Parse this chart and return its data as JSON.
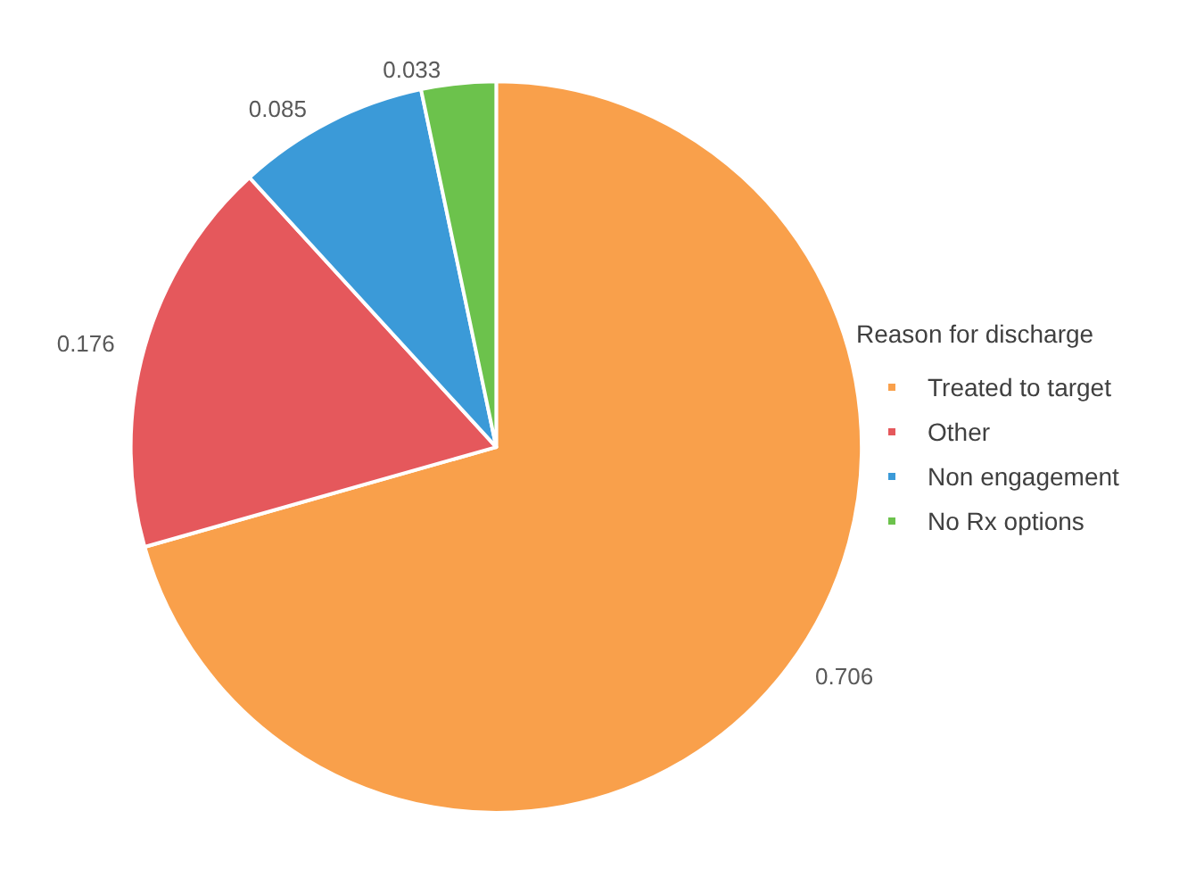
{
  "chart_data": {
    "type": "pie",
    "legend_title": "Reason for discharge",
    "categories": [
      "Treated to target",
      "Other",
      "Non engagement",
      "No Rx options"
    ],
    "values": [
      0.706,
      0.176,
      0.085,
      0.033
    ],
    "colors": [
      "#f9a04b",
      "#e5585c",
      "#3b9ad8",
      "#6cc24c"
    ],
    "data_labels": true,
    "legend": "right"
  }
}
